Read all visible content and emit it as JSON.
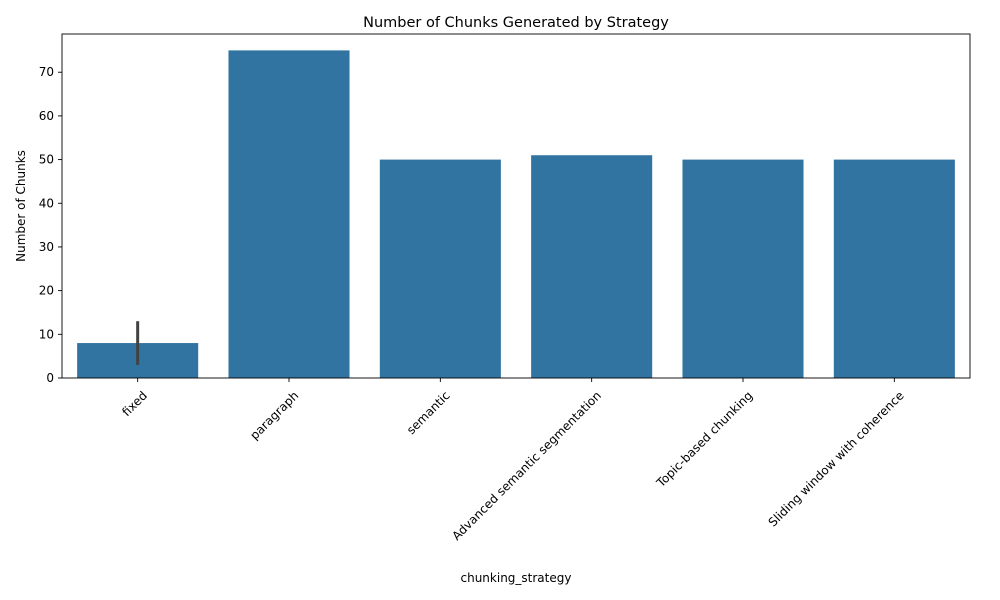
{
  "chart_data": {
    "type": "bar",
    "title": "Number of Chunks Generated by Strategy",
    "xlabel": "chunking_strategy",
    "ylabel": "Number of Chunks",
    "categories": [
      "fixed",
      "paragraph",
      "semantic",
      "Advanced semantic segmentation",
      "Topic-based chunking",
      "Sliding window with coherence"
    ],
    "values": [
      8,
      75,
      50,
      51,
      50,
      50
    ],
    "error_bars": [
      [
        3,
        13
      ],
      null,
      null,
      null,
      null,
      null
    ],
    "yticks": [
      0,
      10,
      20,
      30,
      40,
      50,
      60,
      70
    ],
    "ylim": [
      0,
      78.75
    ],
    "bar_color": "#3274a1",
    "errorbar_color": "#424242",
    "grid": false,
    "legend": "none"
  }
}
